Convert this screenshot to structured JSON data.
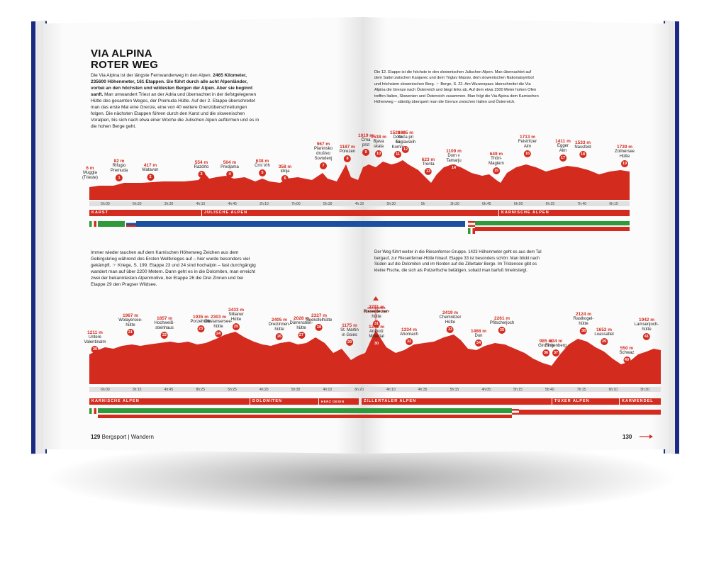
{
  "title": {
    "line1": "VIA ALPINA",
    "line2": "ROTER WEG"
  },
  "intro": {
    "normal_a": "Die Via Alpina ist der längste Fernwanderweg in den Alpen. ",
    "bold": "2465 Kilometer, 235600 Höhenmeter, 161 Etappen. Sie führt durch alle acht Alpenländer, vorbei an den höchsten und wildesten Bergen der Alpen. Aber sie beginnt sanft.",
    "normal_b": " Man umwandert Triest an der Adria und übernachtet in der tiefstgelegenen Hütte des gesamten Weges, der Premuda Hütte. Auf der 2. Etappe überschreitet man das erste Mal eine Grenze, eine von 40 weitere Grenzüberschreitungen folgen. Die nächsten Etappen führen durch den Karst und die slowenischen Voralpen, bis sich nach etwa einer Woche die Julischen Alpen auftürmen und es in die hohen Berge geht."
  },
  "text_right_top": "Die 12. Etappe ist die höchste in den slowenischen Julischen Alpen. Man übernachtet auf dem Sattel zwischen Kanjavec und dem Triglav Massiv, dem slowenischen Nationalsymbol und höchstem slowenischen Berg. ☞ Berge, S. 22. Am Wurzenpass überschreitet die Via Alpina die Grenze nach Österreich und biegt links ab. Auf dem etwa 1500 Meter hohen Ofen treffen Italien, Slowenien und Österreich zusammen. Man folgt die Via Alpina dem Karnischen Höhenweg – ständig überquert man die Grenze zwischen Italien und Österreich.",
  "text_left_mid": "Immer wieder tauchen auf dem Karnischen Höhenweg Zeichen aus dem Gebirgskrieg während des Ersten Weltkrieges auf – hier wurde besonders viel gekämpft. ☞ Kriege, S. 199. Etappe 23 und 24 sind hochalpin – fast durchgängig wandert man auf über 2200 Metern. Dann geht es in die Dolomiten, man erreicht zwei der bekanntesten Alpenmotive, bei Etappe 26 die Drei Zinnen und bei Etappe 29 den Pragser Wildsee.",
  "text_right_mid": "Der Weg führt weiter in die Riesenferner-Gruppe. 1423 Höhenmeter geht es aus dem Tal bergauf, zur Riesenferner-Hütte hinauf. Etappe 33 ist besonders schön: Man blickt nach Süden auf die Dolomiten und im Norden auf die Zillertaler Berge. Im Tristensee gibt es kleine Fische, die sich als Putzerfische betätigen, sobald man barfuß hineinsteigt.",
  "highest_point": "HÖCHSTER\nETAPPENPUNKT",
  "top_markers": [
    {
      "el": "6 m",
      "name": "Muggia\n(Trieste)",
      "n": ""
    },
    {
      "el": "82 m",
      "name": "Rifugio\nPremuda",
      "n": "1"
    },
    {
      "el": "417 m",
      "name": "Matavun",
      "n": "2"
    },
    {
      "el": "554 m",
      "name": "Razdrto",
      "n": "3"
    },
    {
      "el": "504 m",
      "name": "Predjama",
      "n": "4"
    },
    {
      "el": "638 m",
      "name": "Črni Vrh",
      "n": "5"
    },
    {
      "el": "358 m",
      "name": "Idrija",
      "n": "6"
    },
    {
      "el": "967 m",
      "name": "Planinsko\ndruštvo\nSovodenj",
      "n": "7"
    },
    {
      "el": "1187 m",
      "name": "Porezen",
      "n": "8"
    },
    {
      "el": "1019 m",
      "name": "Črna\nprst",
      "n": "9"
    },
    {
      "el": "1538 m",
      "name": "Bjava\nskala",
      "n": "10"
    },
    {
      "el": "1520 m",
      "name": "Dom\nna\nKomni",
      "n": "11"
    },
    {
      "el": "1685 m",
      "name": "Koča pri\nTriglavskih",
      "n": "12"
    },
    {
      "el": "623 m",
      "name": "Trenta",
      "n": "13"
    },
    {
      "el": "1109 m",
      "name": "Dom v\nTamarju",
      "n": "14"
    },
    {
      "el": "649 m",
      "name": "Thörl-\nMaglern",
      "n": "15"
    },
    {
      "el": "1713 m",
      "name": "Feistritzer\nAlm",
      "n": "16"
    },
    {
      "el": "1411 m",
      "name": "Egger\nAlm",
      "n": "17"
    },
    {
      "el": "1533 m",
      "name": "Nassfeld",
      "n": "18"
    },
    {
      "el": "1739 m",
      "name": "Zollnersee\nHütte",
      "n": "19"
    }
  ],
  "top_times": [
    "5h:00",
    "6h:30",
    "3h:30",
    "4h:10",
    "4h:45",
    "2h:10",
    "7h:00",
    "5h:30",
    "4h:30",
    "5h:30",
    "5h",
    "3h:30",
    "6h:45",
    "6h:00",
    "6h:25",
    "7h:40",
    "6h:15"
  ],
  "top_regions": [
    "KARST",
    "JULISCHE ALPEN",
    "KARNISCHE ALPEN"
  ],
  "bottom_markers": [
    {
      "el": "1211 m",
      "name": "Untere\nValentinalm",
      "n": "20"
    },
    {
      "el": "1967 m",
      "name": "Wolayersee-\nhütte",
      "n": "21"
    },
    {
      "el": "1857 m",
      "name": "Hochweiß-\nsteinhaus",
      "n": "22"
    },
    {
      "el": "1935 m",
      "name": "Porzehütte",
      "n": "23"
    },
    {
      "el": "2303 m",
      "name": "Obstansersee-\nhütte",
      "n": "24"
    },
    {
      "el": "2433 m",
      "name": "Sillianer\nHütte",
      "n": "25"
    },
    {
      "el": "2405 m",
      "name": "Dreizinnen-\nhütte",
      "n": "26"
    },
    {
      "el": "2028 m",
      "name": "Dürrenstein-\nhütte",
      "n": "27"
    },
    {
      "el": "2327 m",
      "name": "Seekofelhütte",
      "n": "28"
    },
    {
      "el": "1175 m",
      "name": "St. Martin\nin Gsies",
      "n": "29"
    },
    {
      "el": "1241 m",
      "name": "Antholz\nMittertal",
      "n": "30"
    },
    {
      "el": "2791 m",
      "name": "Riesenferner-\nhütte",
      "n": "31"
    },
    {
      "el": "1334 m",
      "name": "Ahornach",
      "n": "32"
    },
    {
      "el": "2419 m",
      "name": "Chemnitzer\nHütte",
      "n": "33"
    },
    {
      "el": "1468 m",
      "name": "Dun",
      "n": "34"
    },
    {
      "el": "2261 m",
      "name": "Pfitscherjoch",
      "n": "35"
    },
    {
      "el": "985 m",
      "name": "Ginzling",
      "n": "36"
    },
    {
      "el": "834 m",
      "name": "Finkenberg",
      "n": "37"
    },
    {
      "el": "2124 m",
      "name": "Rastkogel-\nhütte",
      "n": "38"
    },
    {
      "el": "1652 m",
      "name": "Loassattel",
      "n": "39"
    },
    {
      "el": "550 m",
      "name": "Schwaz",
      "n": "40"
    },
    {
      "el": "1942 m",
      "name": "Lamsenjoch-\nhütte",
      "n": "41"
    }
  ],
  "bottom_times": [
    "6h:00",
    "3h:15",
    "4h:45",
    "8h:25",
    "5h:25",
    "4h:20",
    "5h:30",
    "4h:10",
    "6h:20",
    "4h:10",
    "4h:35",
    "5h:15",
    "4h:05",
    "5h:15",
    "5h:40",
    "7h:15",
    "6h:10",
    "5h:30"
  ],
  "bottom_regions": [
    "KARNISCHE ALPEN",
    "DOLOMITEN",
    "HERZ GESIN",
    "ZILLERTALER ALPEN",
    "TUXER ALPEN",
    "KARWENDEL"
  ],
  "footer": {
    "left_num": "129",
    "left_label": "Bergsport | Wandern",
    "right_num": "130"
  },
  "colors": {
    "red": "#d42b1f",
    "blue": "#1b4fa0",
    "green": "#2e9a3a",
    "cover": "#1b2a82"
  }
}
